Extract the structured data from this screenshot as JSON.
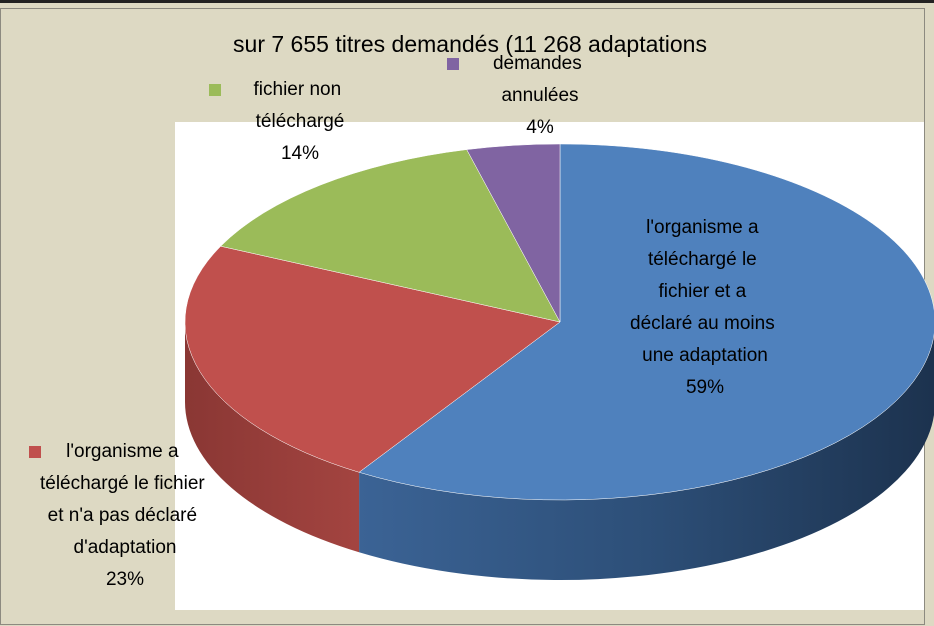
{
  "chart_data": {
    "type": "pie",
    "title": "sur 7 655 titres demandés (11 268 adaptations",
    "categories": [
      "l'organisme a téléchargé le fichier et a déclaré au moins une adaptation",
      "l'organisme a téléchargé le fichier et n'a pas déclaré d'adaptation",
      "fichier non téléchargé",
      "demandes annulées"
    ],
    "values": [
      59,
      23,
      14,
      4
    ],
    "value_labels": [
      "59%",
      "23%",
      "14%",
      "4%"
    ],
    "colors": [
      "#4f81bd",
      "#c0504d",
      "#9bbb59",
      "#8064a2"
    ]
  }
}
